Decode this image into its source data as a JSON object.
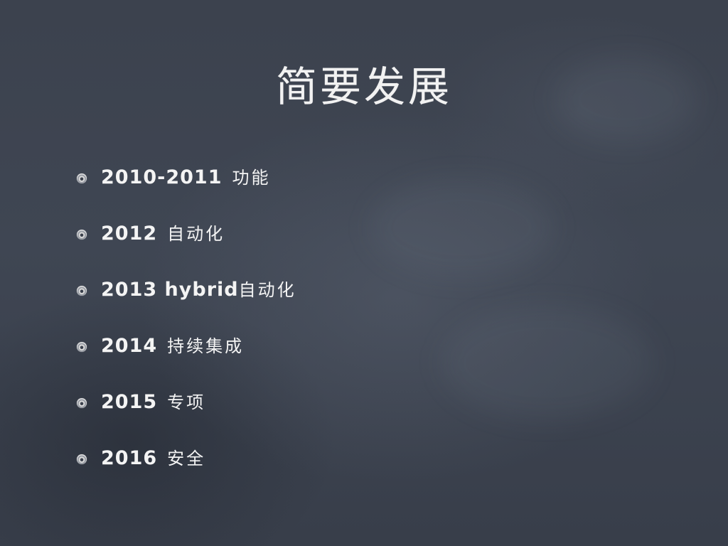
{
  "slide": {
    "title": "简要发展",
    "bullets": [
      {
        "year": "2010-2011",
        "label": "功能"
      },
      {
        "year": "2012",
        "label": "自动化"
      },
      {
        "year": "2013 hybrid",
        "label": "自动化"
      },
      {
        "year": "2014",
        "label": "持续集成"
      },
      {
        "year": "2015",
        "label": "专项"
      },
      {
        "year": "2016",
        "label": "安全"
      }
    ]
  },
  "colors": {
    "background": "#3a404c",
    "text": "#f2f2f2"
  },
  "icons": {
    "bullet": "chalk-circle-bullet-icon"
  }
}
